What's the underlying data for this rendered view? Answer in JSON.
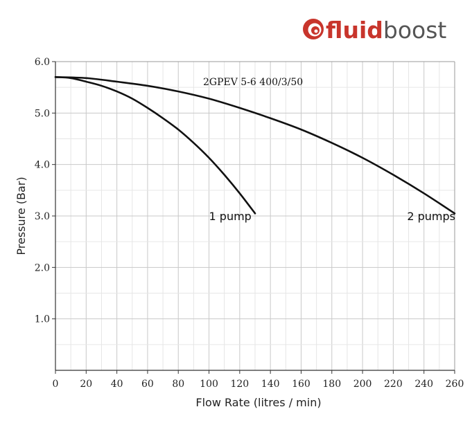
{
  "logo": {
    "brand_bold": "fluid",
    "brand_light": "boost",
    "color_bold": "#c8352c",
    "color_light": "#555555",
    "icon": "fluidboost-swirl-icon"
  },
  "chart_data": {
    "type": "line",
    "title": "2GPEV 5-6 400/3/50",
    "xlabel": "Flow Rate (litres / min)",
    "ylabel": "Pressure (Bar)",
    "xlim": [
      0,
      260
    ],
    "ylim": [
      0,
      6
    ],
    "x_ticks": [
      0,
      20,
      40,
      60,
      80,
      100,
      120,
      140,
      160,
      180,
      200,
      220,
      240,
      260
    ],
    "y_ticks": [
      1,
      2,
      3,
      4,
      5,
      6
    ],
    "y_tick_labels": [
      "1.0",
      "2.0",
      "3.0",
      "4.0",
      "5.0",
      "6.0"
    ],
    "grid": true,
    "series": [
      {
        "name": "1 pump",
        "x": [
          0,
          10,
          20,
          30,
          40,
          50,
          60,
          70,
          80,
          90,
          100,
          110,
          120,
          130
        ],
        "y": [
          5.7,
          5.68,
          5.61,
          5.53,
          5.42,
          5.28,
          5.1,
          4.9,
          4.68,
          4.42,
          4.13,
          3.8,
          3.44,
          3.05
        ],
        "color": "#111111"
      },
      {
        "name": "2 pumps",
        "x": [
          0,
          20,
          40,
          60,
          80,
          100,
          120,
          140,
          160,
          180,
          200,
          220,
          240,
          260
        ],
        "y": [
          5.7,
          5.68,
          5.61,
          5.53,
          5.42,
          5.28,
          5.1,
          4.9,
          4.68,
          4.42,
          4.13,
          3.8,
          3.44,
          3.05
        ],
        "color": "#111111"
      }
    ],
    "annotations": [
      {
        "text": "1 pump",
        "x": 100,
        "y": 3.0
      },
      {
        "text": "2 pumps",
        "x": 229,
        "y": 3.0
      }
    ]
  }
}
